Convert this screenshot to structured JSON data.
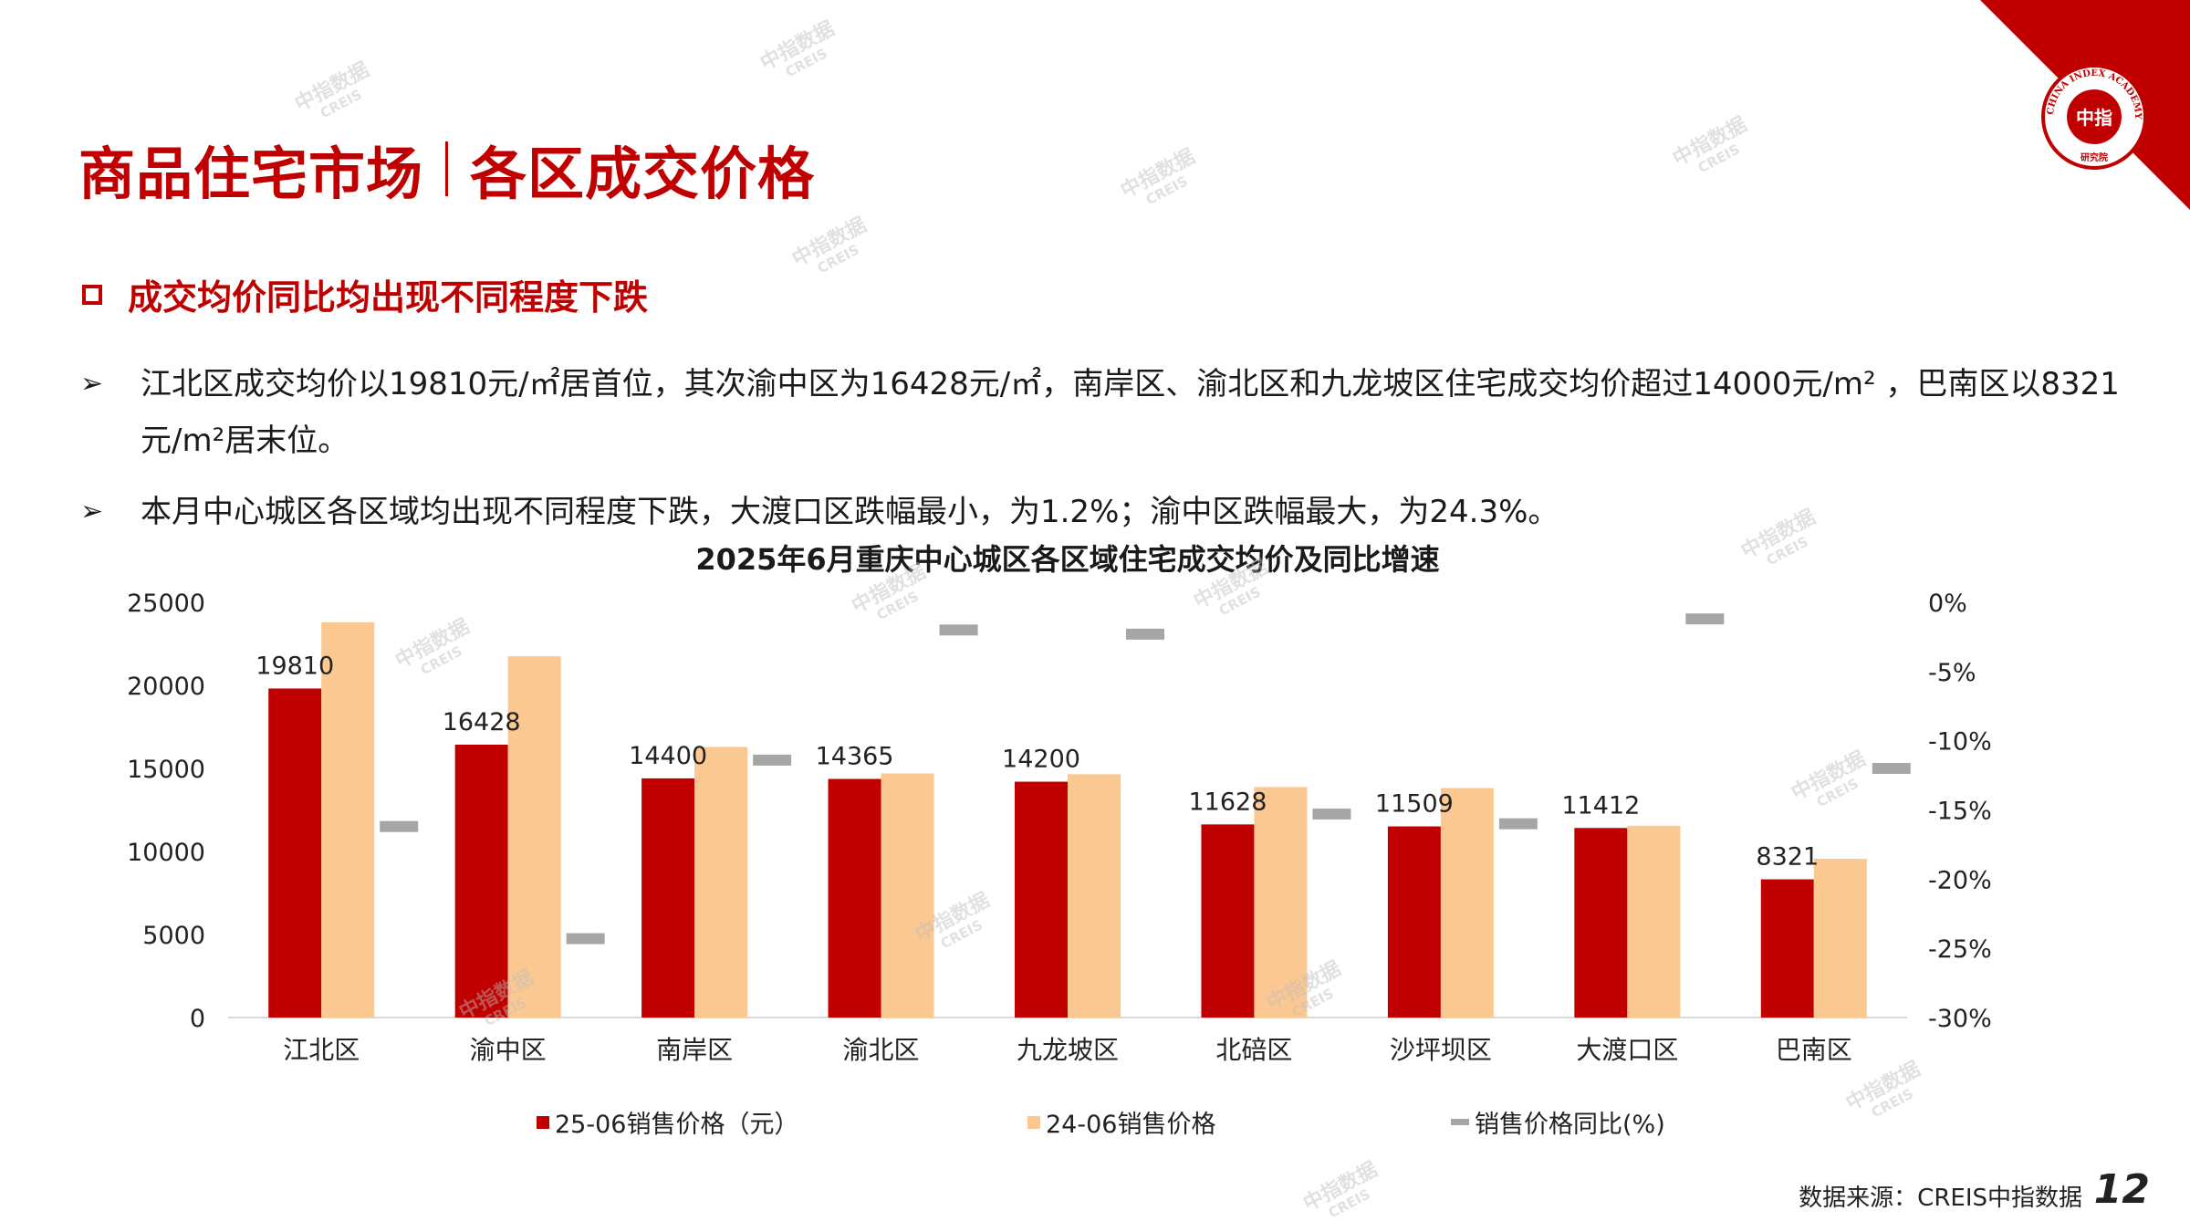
{
  "header": {
    "title_left": "商品住宅市场",
    "title_right": "各区成交价格"
  },
  "subtitle": "成交均价同比均出现不同程度下跌",
  "bullets": [
    "江北区成交均价以19810元/㎡居首位，其次渝中区为16428元/㎡，南岸区、渝北区和九龙坡区住宅成交均价超过14000元/m² ，巴南区以8321元/m²居末位。",
    "本月中心城区各区域均出现不同程度下跌，大渡口区跌幅最小，为1.2%；渝中区跌幅最大，为24.3%。"
  ],
  "bullet_icon": "arrow-right-icon",
  "logo": {
    "arc_text": "CHINA INDEX ACADEMY",
    "center_text": "中指",
    "bottom_text": "研究院"
  },
  "watermark": {
    "cn": "中指数据",
    "en": "CREIS"
  },
  "colors": {
    "brand_red": "#c00000",
    "bar_2025": "#c00000",
    "bar_2024": "#fcc891",
    "line_yoy": "#a6a6a6"
  },
  "chart_data": {
    "type": "bar",
    "title": "2025年6月重庆中心城区各区域住宅成交均价及同比增速",
    "categories": [
      "江北区",
      "渝中区",
      "南岸区",
      "渝北区",
      "九龙坡区",
      "北碚区",
      "沙坪坝区",
      "大渡口区",
      "巴南区"
    ],
    "series": [
      {
        "name": "25-06销售价格（元）",
        "type": "bar",
        "axis": "left",
        "values": [
          19810,
          16428,
          14400,
          14365,
          14200,
          11628,
          11509,
          11412,
          8321
        ],
        "labels": [
          "19810",
          "16428",
          "14400",
          "14365",
          "14200",
          "11628",
          "11509",
          "11412",
          "8321"
        ]
      },
      {
        "name": "24-06销售价格",
        "type": "bar",
        "axis": "left",
        "values": [
          23800,
          21750,
          16290,
          14700,
          14650,
          13880,
          13820,
          11550,
          9560
        ]
      },
      {
        "name": "销售价格同比(%)",
        "type": "line-markers",
        "axis": "right",
        "values": [
          -16.2,
          -24.3,
          -11.4,
          -2.0,
          -2.3,
          -15.3,
          -16.0,
          -1.2,
          -12.0
        ]
      }
    ],
    "y_left": {
      "min": 0,
      "max": 25000,
      "ticks": [
        0,
        5000,
        10000,
        15000,
        20000,
        25000
      ],
      "tick_labels": [
        "0",
        "5000",
        "10000",
        "15000",
        "20000",
        "25000"
      ]
    },
    "y_right": {
      "min": -30,
      "max": 0,
      "ticks": [
        0,
        -5,
        -10,
        -15,
        -20,
        -25,
        -30
      ],
      "tick_labels": [
        "0%",
        "-5%",
        "-10%",
        "-15%",
        "-20%",
        "-25%",
        "-30%"
      ]
    },
    "grid": false,
    "legend": "bottom"
  },
  "footer": {
    "source": "数据来源：CREIS中指数据",
    "page": "12"
  }
}
